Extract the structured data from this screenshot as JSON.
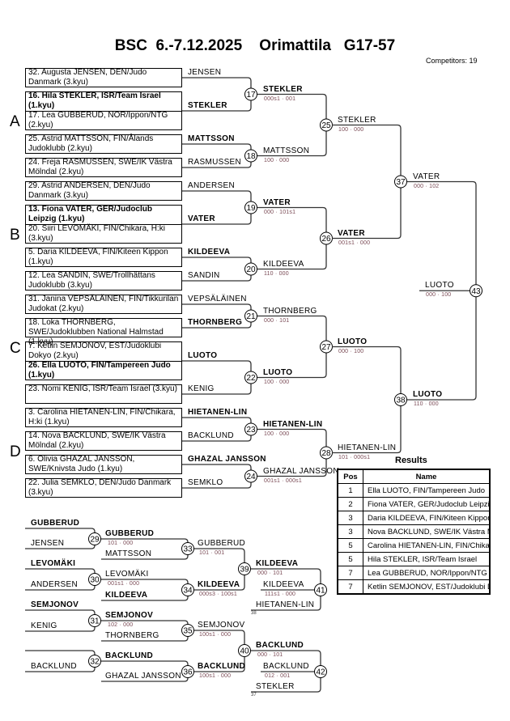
{
  "header": {
    "title": "BSC  6.-7.12.2025    Orimattila   G17-57",
    "competitors": "Competitors: 19"
  },
  "pools": [
    "A",
    "B",
    "C",
    "D"
  ],
  "draw": [
    {
      "top": "",
      "bottom": "32. Augusta JENSEN, DEN/Judo Danmark (3.kyu)"
    },
    {
      "top": "16. Hila STEKLER, ISR/Team Israel (1.kyu)",
      "top_bold": true,
      "bottom": "17. Lea GUBBERUD, NOR/Ippon/NTG (2.kyu)"
    },
    {
      "top": "",
      "bottom": "25. Astrid MATTSSON, FIN/Ålands Judoklubb (2.kyu)"
    },
    {
      "top": "",
      "bottom": "24. Freja RASMUSSEN, SWE/IK Västra Mölndal (2.kyu)"
    },
    {
      "top": "",
      "bottom": "29. Astrid ANDERSEN, DEN/Judo Danmark (3.kyu)"
    },
    {
      "top": "13. Fiona VATER, GER/Judoclub Leipzig (1.kyu)",
      "top_bold": true,
      "bottom": "20. Siiri LEVOMÄKI, FIN/Chikara, H:ki (3.kyu)"
    },
    {
      "top": "5. Daria KILDEEVA, FIN/Kiteen Kippon (1.kyu)",
      "bottom": ""
    },
    {
      "top": "12. Lea SANDIN, SWE/Trollhättans Judoklubb (3.kyu)",
      "bottom": ""
    },
    {
      "top": "",
      "bottom": "31. Janina VEPSÄLÄINEN, FIN/Tikkurilan Judokat (2.kyu)"
    },
    {
      "top": "",
      "bottom": "18. Loka THORNBERG, SWE/Judoklubben National Halmstad (1.kyu)"
    },
    {
      "top": "7. Ketlin SEMJONOV, EST/Judoklubi Dokyo (2.kyu)",
      "bottom": "26. Ella LUOTO, FIN/Tampereen Judo (1.kyu)",
      "bottom_bold": true
    },
    {
      "top": "",
      "bottom": "23. Nomi KENIG, ISR/Team Israel (3.kyu)"
    },
    {
      "top": "3. Carolina HIETANEN-LIN, FIN/Chikara, H:ki (1.kyu)",
      "bottom": ""
    },
    {
      "top": "14. Nova BACKLUND, SWE/IK Västra Mölndal (2.kyu)",
      "bottom": ""
    },
    {
      "top": "6. Olivia GHAZAL JANSSON, SWE/Knivsta Judo (1.kyu)",
      "bottom": ""
    },
    {
      "top": "",
      "bottom": "22. Julia SEMKLO, DEN/Judo Danmark (3.kyu)"
    }
  ],
  "main": {
    "r1": [
      {
        "match": "17",
        "top": "JENSEN",
        "bottom": "STEKLER",
        "bottom_bold": true,
        "winner": "STEKLER",
        "winner_bold": true,
        "score": "000s1 · 001"
      },
      {
        "match": "18",
        "top": "MATTSSON",
        "top_bold": true,
        "bottom": "RASMUSSEN",
        "winner": "MATTSSON",
        "score": "100 · 000"
      },
      {
        "match": "19",
        "top": "ANDERSEN",
        "bottom": "VATER",
        "bottom_bold": true,
        "winner": "VATER",
        "winner_bold": true,
        "score": "000 · 101s1"
      },
      {
        "match": "20",
        "top": "KILDEEVA",
        "top_bold": true,
        "bottom": "SANDIN",
        "winner": "KILDEEVA",
        "score": "110 · 000"
      },
      {
        "match": "21",
        "top": "VEPSÄLÄINEN",
        "bottom": "THORNBERG",
        "bottom_bold": true,
        "winner": "THORNBERG",
        "score": "000 · 101"
      },
      {
        "match": "22",
        "top": "LUOTO",
        "top_bold": true,
        "bottom": "KENIG",
        "winner": "LUOTO",
        "winner_bold": true,
        "score": "100 · 000"
      },
      {
        "match": "23",
        "top": "HIETANEN-LIN",
        "top_bold": true,
        "bottom": "BACKLUND",
        "winner": "HIETANEN-LIN",
        "winner_bold": true,
        "score": "100 · 000"
      },
      {
        "match": "24",
        "top": "GHAZAL JANSSON",
        "top_bold": true,
        "bottom": "SEMKLO",
        "winner": "GHAZAL JANSSON",
        "score": "001s1 · 000s1"
      }
    ],
    "r2": [
      {
        "match": "25",
        "winner": "STEKLER",
        "score": "100 · 000"
      },
      {
        "match": "26",
        "winner": "VATER",
        "winner_bold": true,
        "score": "001s1 · 000"
      },
      {
        "match": "27",
        "winner": "LUOTO",
        "winner_bold": true,
        "score": "000 · 100"
      },
      {
        "match": "28",
        "winner": "HIETANEN-LIN",
        "score": "101 · 000s1"
      }
    ],
    "r3": [
      {
        "match": "37",
        "winner": "VATER",
        "score": "000 · 102"
      },
      {
        "match": "38",
        "winner": "LUOTO",
        "winner_bold": true,
        "score": "110 · 000"
      }
    ],
    "final": {
      "match": "43",
      "winner": "LUOTO",
      "score": "000 · 100"
    }
  },
  "repechage": {
    "r1": [
      {
        "match": "29",
        "top": "GUBBERUD",
        "bottom": "JENSEN",
        "winner": "GUBBERUD",
        "score": "101 · 000"
      },
      {
        "match": "30",
        "top": "LEVOMÄKI",
        "bottom": "ANDERSEN",
        "winner": "LEVOMÄKI",
        "score": "001s1 · 000"
      },
      {
        "match": "31",
        "top": "SEMJONOV",
        "bottom": "KENIG",
        "winner": "SEMJONOV",
        "score": "102 · 000"
      },
      {
        "match": "32",
        "top": "",
        "bottom": "BACKLUND",
        "winner": "BACKLUND",
        "score": ""
      }
    ],
    "r2": [
      {
        "match": "33",
        "bottom": "MATTSSON",
        "winner": "GUBBERUD",
        "score": "101 · 001"
      },
      {
        "match": "34",
        "bottom": "KILDEEVA",
        "winner": "KILDEEVA",
        "score": "000s3 · 100s1"
      },
      {
        "match": "35",
        "bottom": "THORNBERG",
        "winner": "SEMJONOV",
        "score": "100s1 · 000"
      },
      {
        "match": "36",
        "bottom": "GHAZAL JANSSON",
        "winner": "BACKLUND",
        "score": "100s1 · 000"
      }
    ],
    "r3": [
      {
        "match": "39",
        "winner": "KILDEEVA",
        "score": "000 · 101"
      },
      {
        "match": "40",
        "winner": "BACKLUND",
        "score": "000 · 101"
      }
    ],
    "bronze": [
      {
        "match": "41",
        "bottom": "HIETANEN-LIN",
        "from_match": "38",
        "winner": "KILDEEVA",
        "score": "111s1 · 000"
      },
      {
        "match": "42",
        "bottom": "STEKLER",
        "from_match": "37",
        "winner": "BACKLUND",
        "score": "012 · 001"
      }
    ]
  },
  "results": {
    "title": "Results",
    "headers": [
      "Pos",
      "Name"
    ],
    "rows": [
      {
        "pos": "1",
        "name": "Ella LUOTO, FIN/Tampereen Judo"
      },
      {
        "pos": "2",
        "name": "Fiona VATER, GER/Judoclub Leipzig"
      },
      {
        "pos": "3",
        "name": "Daria KILDEEVA, FIN/Kiteen Kippon"
      },
      {
        "pos": "3",
        "name": "Nova BACKLUND, SWE/IK Västra Mölndal"
      },
      {
        "pos": "5",
        "name": "Carolina HIETANEN-LIN, FIN/Chikara"
      },
      {
        "pos": "5",
        "name": "Hila STEKLER, ISR/Team Israel"
      },
      {
        "pos": "7",
        "name": "Lea GUBBERUD, NOR/Ippon/NTG"
      },
      {
        "pos": "7",
        "name": "Ketlin SEMJONOV, EST/Judoklubi Dokyo"
      }
    ]
  }
}
